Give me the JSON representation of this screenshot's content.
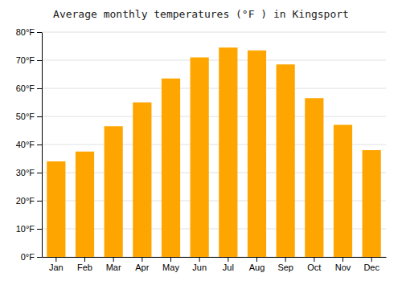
{
  "chart_data": {
    "type": "bar",
    "title": "Average monthly temperatures (°F ) in Kingsport",
    "categories": [
      "Jan",
      "Feb",
      "Mar",
      "Apr",
      "May",
      "Jun",
      "Jul",
      "Aug",
      "Sep",
      "Oct",
      "Nov",
      "Dec"
    ],
    "values": [
      34,
      37.5,
      46.5,
      55,
      63.5,
      71,
      74.5,
      73.5,
      68.5,
      56.5,
      47,
      38
    ],
    "color": "#FFA500",
    "ylim": [
      0,
      80
    ],
    "yticks": [
      {
        "value": 0,
        "label": "0°F"
      },
      {
        "value": 10,
        "label": "10°F"
      },
      {
        "value": 20,
        "label": "20°F"
      },
      {
        "value": 30,
        "label": "30°F"
      },
      {
        "value": 40,
        "label": "40°F"
      },
      {
        "value": 50,
        "label": "50°F"
      },
      {
        "value": 60,
        "label": "60°F"
      },
      {
        "value": 70,
        "label": "70°F"
      },
      {
        "value": 80,
        "label": "80°F"
      }
    ],
    "grid": true
  }
}
